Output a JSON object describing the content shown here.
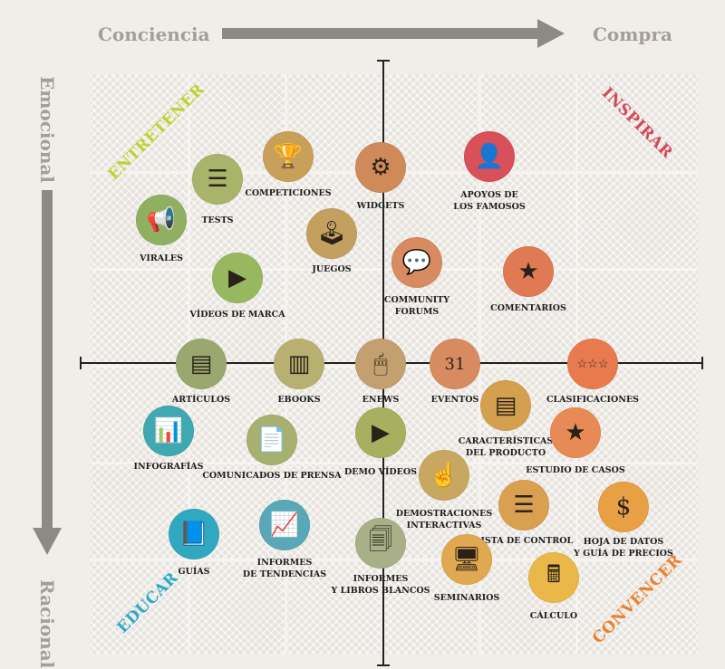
{
  "axes": {
    "top_left": "Conciencia",
    "top_right": "Compra",
    "left_top": "Emocional",
    "left_bottom": "Racional"
  },
  "quadrants": {
    "top_left": {
      "label": "ENTRETENER",
      "color": "#b9d433"
    },
    "top_right": {
      "label": "INSPIRAR",
      "color": "#d3495a"
    },
    "bottom_left": {
      "label": "EDUCAR",
      "color": "#2fa9c9"
    },
    "bottom_right": {
      "label": "CONVENCER",
      "color": "#e8812f"
    }
  },
  "items": [
    {
      "lines": [
        "COMPETICIONES"
      ],
      "color": "#c9a05a",
      "icon": "trophy-icon",
      "glyph": "🏆"
    },
    {
      "lines": [
        "TESTS"
      ],
      "color": "#a8b46a",
      "icon": "brain-icon",
      "glyph": "☰"
    },
    {
      "lines": [
        "WIDGETS"
      ],
      "color": "#d08a5a",
      "icon": "gear-icon",
      "glyph": "⚙"
    },
    {
      "lines": [
        "APOYOS DE",
        "LOS FAMOSOS"
      ],
      "color": "#d8505a",
      "icon": "speaker-person-icon",
      "glyph": "👤"
    },
    {
      "lines": [
        "VIRALES"
      ],
      "color": "#8fb060",
      "icon": "megaphone-icon",
      "glyph": "📢"
    },
    {
      "lines": [
        "JUEGOS"
      ],
      "color": "#c4a060",
      "icon": "joystick-icon",
      "glyph": "🕹"
    },
    {
      "lines": [
        "COMMUNITY",
        "FORUMS"
      ],
      "color": "#d88a60",
      "icon": "chat-bubbles-icon",
      "glyph": "💬"
    },
    {
      "lines": [
        "COMENTARIOS"
      ],
      "color": "#e07a55",
      "icon": "review-document-icon",
      "glyph": "★"
    },
    {
      "lines": [
        "VÍDEOS DE MARCA"
      ],
      "color": "#98b860",
      "icon": "video-play-icon",
      "glyph": "▶"
    },
    {
      "lines": [
        "ARTÍCULOS"
      ],
      "color": "#9aa870",
      "icon": "article-icon",
      "glyph": "▤"
    },
    {
      "lines": [
        "EBOOKS"
      ],
      "color": "#b8b070",
      "icon": "ebook-icon",
      "glyph": "▥"
    },
    {
      "lines": [
        "ENEWS"
      ],
      "color": "#c4a070",
      "icon": "mouse-icon",
      "glyph": "🖱"
    },
    {
      "lines": [
        "EVENTOS"
      ],
      "color": "#d88a60",
      "icon": "calendar-icon",
      "glyph": "31"
    },
    {
      "lines": [
        "CLASIFICACIONES"
      ],
      "color": "#e87a50",
      "icon": "stars-icon",
      "glyph": "☆☆☆"
    },
    {
      "lines": [
        "CARACTERÍSTICAS",
        "DEL PRODUCTO"
      ],
      "color": "#d4a050",
      "icon": "product-sheet-icon",
      "glyph": "▤"
    },
    {
      "lines": [
        "INFOGRAFÍAS"
      ],
      "color": "#3fa8b0",
      "icon": "infographic-icon",
      "glyph": "📊"
    },
    {
      "lines": [
        "COMUNICADOS DE PRENSA"
      ],
      "color": "#a8b070",
      "icon": "press-release-icon",
      "glyph": "📄"
    },
    {
      "lines": [
        "DEMO VÍDEOS"
      ],
      "color": "#a8b060",
      "icon": "video-play-icon",
      "glyph": "▶"
    },
    {
      "lines": [
        "ESTUDIO DE CASOS"
      ],
      "color": "#e88a55",
      "icon": "case-study-icon",
      "glyph": "★"
    },
    {
      "lines": [
        "DEMOSTRACIONES",
        "INTERACTIVAS"
      ],
      "color": "#c8a860",
      "icon": "touch-screen-icon",
      "glyph": "☝"
    },
    {
      "lines": [
        "LISTA DE CONTROL"
      ],
      "color": "#d8a050",
      "icon": "checklist-icon",
      "glyph": "☰"
    },
    {
      "lines": [
        "HOJA DE DATOS",
        "Y GUÍA DE PRECIOS"
      ],
      "color": "#e8a045",
      "icon": "dollar-icon",
      "glyph": "$"
    },
    {
      "lines": [
        "GUÍAS"
      ],
      "color": "#30a8c0",
      "icon": "guide-book-icon",
      "glyph": "📘"
    },
    {
      "lines": [
        "INFORMES",
        "DE TENDENCIAS"
      ],
      "color": "#58a8b8",
      "icon": "trend-chart-icon",
      "glyph": "📈"
    },
    {
      "lines": [
        "INFORMES",
        "Y LIBROS BLANCOS"
      ],
      "color": "#a8b088",
      "icon": "documents-icon",
      "glyph": "🗐"
    },
    {
      "lines": [
        "SEMINARIOS"
      ],
      "color": "#e0a850",
      "icon": "webinar-icon",
      "glyph": "🖥"
    },
    {
      "lines": [
        "CÁLCULO"
      ],
      "color": "#eab848",
      "icon": "calculator-icon",
      "glyph": "🖩"
    }
  ]
}
